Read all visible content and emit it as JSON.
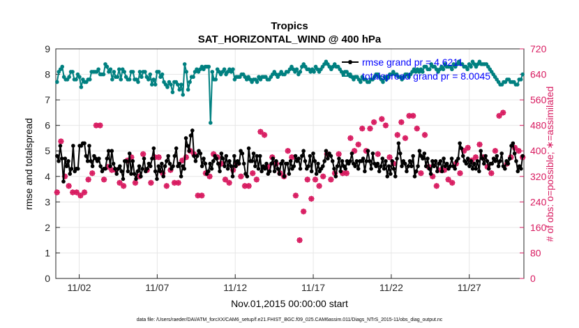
{
  "chart_data": {
    "type": "line",
    "title": "Tropics",
    "subtitle": "SAT_HORIZONTAL_WIND @ 400 hPa",
    "xlabel": "Nov.01,2015 00:00:00 start",
    "ylabel_left": "rmse and totalspread",
    "ylabel_right": "# of obs: o=possible; ∗=assimilated",
    "x_range": [
      0.5,
      30.5
    ],
    "ylim_left": [
      0,
      9
    ],
    "ylim_right": [
      0,
      720
    ],
    "x_ticks": [
      {
        "x": 2,
        "label": "11/02"
      },
      {
        "x": 7,
        "label": "11/07"
      },
      {
        "x": 12,
        "label": "11/12"
      },
      {
        "x": 17,
        "label": "11/17"
      },
      {
        "x": 22,
        "label": "11/22"
      },
      {
        "x": 27,
        "label": "11/27"
      }
    ],
    "y_ticks_left": [
      "0",
      "1",
      "2",
      "3",
      "4",
      "5",
      "6",
      "7",
      "8",
      "9"
    ],
    "y_ticks_right": [
      "0",
      "80",
      "160",
      "240",
      "320",
      "400",
      "480",
      "560",
      "640",
      "720"
    ],
    "colors": {
      "rmse": "#000000",
      "spread": "#008080",
      "obs": "#d81b60",
      "legend_text": "#0000ff",
      "grid": "#e6e6e6"
    },
    "series": [
      {
        "name": "rmse grand pr = 4.6211",
        "axis": "left",
        "values": [
          4.8,
          4.6,
          5.2,
          4.7,
          3.8,
          4.7,
          4.4,
          4.6,
          4.1,
          4.3,
          5.2,
          4.2,
          4.3,
          4.3,
          5.2,
          5.2,
          5.3,
          5.3,
          4.8,
          4.6,
          5.2,
          4.6,
          4.4,
          4.8,
          4.7,
          4.6,
          4.7,
          4.4,
          4.2,
          4.3,
          4.3,
          4.7,
          5.0,
          4.4,
          5.0,
          4.5,
          4.3,
          4.1,
          4.3,
          4.4,
          4.2,
          3.9,
          4.6,
          4.6,
          4.2,
          4.9,
          4.1,
          4.6,
          4.1,
          3.9,
          4.2,
          4.4,
          4.0,
          4.3,
          4.7,
          4.2,
          4.3,
          4.5,
          4.4,
          4.7,
          5.1,
          4.2,
          3.9,
          4.4,
          4.2,
          4.5,
          4.0,
          4.4,
          4.6,
          4.8,
          4.5,
          4.3,
          4.4,
          4.8,
          5.1,
          4.4,
          4.5,
          4.0,
          4.4,
          4.3,
          5.5,
          5.2,
          5.0,
          5.6,
          5.8,
          4.8,
          4.6,
          4.8,
          5.0,
          4.9,
          4.4,
          4.7,
          4.5,
          4.1,
          4.2,
          4.5,
          4.3,
          4.6,
          4.8,
          4.7,
          4.5,
          4.2,
          4.9,
          4.7,
          4.4,
          4.8,
          4.3,
          4.6,
          4.4,
          4.0,
          4.8,
          4.4,
          4.6,
          4.5,
          5.0,
          4.9,
          4.5,
          4.1,
          4.0,
          5.1,
          4.6,
          4.6,
          4.9,
          4.4,
          4.8,
          4.3,
          4.8,
          4.2,
          4.4,
          4.3,
          4.5,
          4.1,
          4.2,
          4.5,
          4.7,
          4.2,
          4.6,
          4.3,
          4.1,
          4.5,
          4.6,
          4.0,
          4.5,
          4.5,
          4.1,
          4.6,
          4.3,
          4.4,
          4.8,
          4.6,
          4.7,
          4.3,
          4.8,
          5.0,
          4.6,
          4.3,
          4.4,
          4.8,
          4.2,
          4.9,
          4.6,
          4.1,
          4.5,
          4.2,
          4.3,
          4.4,
          4.6,
          5.0,
          4.7,
          4.9,
          4.8,
          4.6,
          4.3,
          4.0,
          4.4,
          4.7,
          4.2,
          4.6,
          4.4,
          4.3,
          4.6,
          4.5,
          4.6,
          4.9,
          4.5,
          4.4,
          4.6,
          4.3,
          4.6,
          4.6,
          4.7,
          4.2,
          4.6,
          5.0,
          4.6,
          4.3,
          4.9,
          4.5,
          4.4,
          4.5,
          4.2,
          4.4,
          4.7,
          4.3,
          4.6,
          4.0,
          4.4,
          4.1,
          4.6,
          4.3,
          4.0,
          4.7,
          5.3,
          4.9,
          4.4,
          4.6,
          4.5,
          4.2,
          4.4,
          4.6,
          4.4,
          4.8,
          4.0,
          4.2,
          4.4,
          5.0,
          4.8,
          4.7,
          4.9,
          4.4,
          4.7,
          4.3,
          4.1,
          4.6,
          4.4,
          4.6,
          4.2,
          4.5,
          4.6,
          4.2,
          4.7,
          4.4,
          4.5,
          4.3,
          4.4,
          4.7,
          4.4,
          4.3,
          4.6,
          4.7,
          5.3,
          5.1,
          4.8,
          4.6,
          4.5,
          4.7,
          4.4,
          4.6,
          4.3,
          4.5,
          4.3,
          4.6,
          4.2,
          5.0,
          4.7,
          4.5,
          4.8,
          4.6,
          4.3,
          4.5,
          4.5,
          4.7,
          4.6,
          4.8,
          4.4,
          4.6,
          4.9,
          4.4,
          4.3,
          4.6,
          4.5,
          4.7,
          5.2,
          5.3,
          4.9,
          4.6,
          4.2,
          4.4,
          4.3,
          4.8
        ]
      },
      {
        "name": "totalspread grand pr = 8.0045",
        "axis": "left",
        "values": [
          7.7,
          8.1,
          8.2,
          8.3,
          7.9,
          7.8,
          7.8,
          7.9,
          8.1,
          8.1,
          7.8,
          7.8,
          8.0,
          7.9,
          7.5,
          7.8,
          7.7,
          7.7,
          7.8,
          7.8,
          8.1,
          8.1,
          8.1,
          8.1,
          8.2,
          8.0,
          8.0,
          8.0,
          8.4,
          8.3,
          8.1,
          8.2,
          7.8,
          8.1,
          7.9,
          7.9,
          8.2,
          7.8,
          8.2,
          8.1,
          7.9,
          7.8,
          7.8,
          8.1,
          8.1,
          7.8,
          7.8,
          7.7,
          8.1,
          7.9,
          8.1,
          8.1,
          7.9,
          7.8,
          8.0,
          7.6,
          7.8,
          7.6,
          8.1,
          8.1,
          7.9,
          8.0,
          7.7,
          7.6,
          7.5,
          7.7,
          7.6,
          7.3,
          7.7,
          7.7,
          7.6,
          7.4,
          7.6,
          7.2,
          8.4,
          8.1,
          7.4,
          7.7,
          7.9,
          7.9,
          8.1,
          8.2,
          8.1,
          8.2,
          8.3,
          8.2,
          8.3,
          8.3,
          8.3,
          6.1,
          8.1,
          7.8,
          7.8,
          8.2,
          8.1,
          8.0,
          8.1,
          8.2,
          8.0,
          8.1,
          8.2,
          8.1,
          8.2,
          7.8,
          7.9,
          7.9,
          7.9,
          8.0,
          8.0,
          7.9,
          7.8,
          7.9,
          7.8,
          7.7,
          7.8,
          7.8,
          7.7,
          7.9,
          7.8,
          7.9,
          7.9,
          7.9,
          7.8,
          7.8,
          7.9,
          8.0,
          8.1,
          8.0,
          7.9,
          8.0,
          8.1,
          8.0,
          8.0,
          8.1,
          8.1,
          8.2,
          8.3,
          8.2,
          8.1,
          8.2,
          8.0,
          8.1,
          8.3,
          8.4,
          8.3,
          8.2,
          8.2,
          8.1,
          8.2,
          8.1,
          8.3,
          8.2,
          8.1,
          8.2,
          8.3,
          8.4,
          8.5,
          8.4,
          8.3,
          8.2,
          8.3,
          8.4,
          8.3,
          8.3,
          8.2,
          8.1,
          8.0,
          8.1,
          8.1,
          8.0,
          8.0,
          7.9,
          7.8,
          7.9,
          7.9,
          7.8,
          7.7,
          7.9,
          7.8,
          7.8,
          7.7,
          7.7,
          7.8,
          7.8,
          7.9,
          8.0,
          8.0,
          7.9,
          7.8,
          7.7,
          7.9,
          7.8,
          7.9,
          8.0,
          8.0,
          8.1,
          8.0,
          8.0,
          7.9,
          7.9,
          7.8,
          7.9,
          8.0,
          8.0,
          7.9,
          8.0,
          8.1,
          8.2,
          8.1,
          8.2,
          8.1,
          8.2,
          8.1,
          8.3,
          8.3,
          8.2,
          8.2,
          8.4,
          8.3,
          8.3,
          8.2,
          8.1,
          8.2,
          8.3,
          8.2,
          8.4,
          8.3,
          8.3,
          8.3,
          8.2,
          8.4,
          8.3,
          8.4,
          8.5,
          8.4,
          8.4,
          8.3,
          8.3,
          8.2,
          8.4,
          8.3,
          8.5,
          8.4,
          8.3,
          8.4,
          8.5,
          8.4,
          8.4,
          8.4,
          8.4,
          8.3,
          8.2,
          8.1,
          8.0,
          7.9,
          7.8,
          7.7,
          7.6,
          7.6,
          7.7,
          7.7,
          7.8,
          7.8,
          7.7,
          7.7,
          7.7,
          7.6,
          7.6,
          7.8,
          7.8,
          8.0
        ]
      },
      {
        "name": "obs possible",
        "axis": "right",
        "values": [
          270,
          430,
          320,
          290,
          270,
          270,
          260,
          270,
          310,
          330,
          480,
          480,
          310,
          350,
          340,
          340,
          300,
          290,
          370,
          380,
          300,
          320,
          390,
          340,
          300,
          380,
          380,
          330,
          290,
          340,
          300,
          300,
          370,
          380,
          400,
          390,
          260,
          260,
          330,
          320,
          390,
          380,
          360,
          310,
          300,
          340,
          360,
          320,
          290,
          290,
          330,
          310,
          460,
          450,
          350,
          380,
          360,
          330,
          320,
          400,
          380,
          260,
          120,
          210,
          310,
          250,
          310,
          290,
          320,
          390,
          310,
          330,
          390,
          330,
          330,
          440,
          400,
          420,
          470,
          400,
          470,
          490,
          390,
          500,
          480,
          380,
          360,
          450,
          490,
          440,
          510,
          510,
          470,
          330,
          450,
          350,
          320,
          290,
          340,
          340,
          310,
          300,
          360,
          330,
          400,
          410,
          370,
          380,
          420,
          380,
          350,
          330,
          400,
          510,
          520,
          360,
          380,
          410,
          400,
          380
        ]
      },
      {
        "name": "obs assimilated",
        "axis": "right",
        "values": [
          270,
          430,
          320,
          290,
          270,
          270,
          260,
          270,
          310,
          330,
          480,
          480,
          310,
          350,
          340,
          340,
          300,
          290,
          370,
          380,
          300,
          320,
          390,
          340,
          300,
          380,
          380,
          330,
          290,
          340,
          300,
          300,
          370,
          380,
          400,
          390,
          260,
          260,
          330,
          320,
          390,
          380,
          360,
          310,
          300,
          340,
          360,
          320,
          290,
          290,
          330,
          310,
          460,
          450,
          350,
          380,
          360,
          330,
          320,
          400,
          380,
          260,
          120,
          210,
          310,
          250,
          310,
          290,
          320,
          390,
          310,
          330,
          390,
          330,
          330,
          440,
          400,
          420,
          470,
          400,
          470,
          490,
          390,
          500,
          480,
          380,
          360,
          450,
          490,
          440,
          510,
          510,
          470,
          330,
          450,
          350,
          320,
          290,
          340,
          340,
          310,
          300,
          360,
          330,
          400,
          410,
          370,
          380,
          420,
          380,
          350,
          330,
          400,
          510,
          520,
          360,
          380,
          410,
          400,
          380
        ]
      }
    ],
    "legend": {
      "placement": "top-right",
      "entries": [
        "rmse grand pr = 4.6211",
        "totalspread grand pr = 8.0045"
      ]
    }
  },
  "footer": "data file: /Users/raeder/DAI/ATM_forcXX/CAM6_setup/f.e21.FHIST_BGC.f09_025.CAM6assim.011/Diags_NTrS_2015-11/obs_diag_output.nc"
}
